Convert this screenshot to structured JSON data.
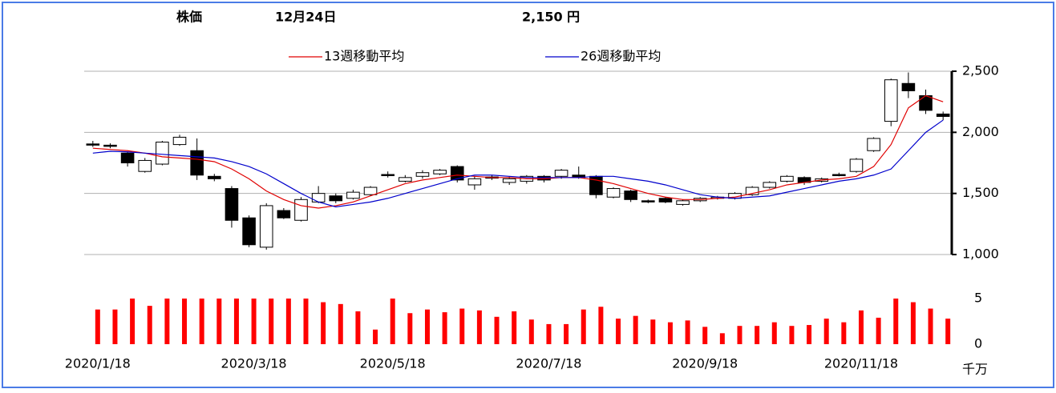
{
  "chart_data": [
    {
      "type": "candlestick",
      "title": "株価",
      "date": "12月24日",
      "price_label": "2,150 円",
      "open": [
        1905,
        1895,
        1830,
        1680,
        1740,
        1900,
        1850,
        1640,
        1540,
        1300,
        1060,
        1360,
        1280,
        1430,
        1480,
        1460,
        1490,
        1655,
        1600,
        1640,
        1660,
        1720,
        1570,
        1635,
        1590,
        1600,
        1640,
        1640,
        1650,
        1640,
        1470,
        1520,
        1440,
        1460,
        1410,
        1440,
        1460,
        1460,
        1490,
        1550,
        1600,
        1630,
        1600,
        1655,
        1680,
        1850,
        2090,
        2400,
        2300,
        2150
      ],
      "high": [
        1930,
        1910,
        1840,
        1790,
        1930,
        1980,
        1950,
        1660,
        1560,
        1320,
        1420,
        1380,
        1470,
        1560,
        1500,
        1530,
        1560,
        1680,
        1650,
        1690,
        1700,
        1730,
        1640,
        1650,
        1640,
        1650,
        1650,
        1700,
        1720,
        1650,
        1550,
        1530,
        1450,
        1470,
        1450,
        1470,
        1480,
        1510,
        1560,
        1600,
        1650,
        1640,
        1630,
        1670,
        1790,
        1960,
        2440,
        2490,
        2350,
        2170
      ],
      "low": [
        1880,
        1870,
        1720,
        1670,
        1730,
        1890,
        1610,
        1600,
        1220,
        1060,
        1040,
        1290,
        1270,
        1420,
        1420,
        1450,
        1480,
        1630,
        1590,
        1620,
        1650,
        1590,
        1530,
        1610,
        1570,
        1580,
        1590,
        1620,
        1620,
        1460,
        1460,
        1430,
        1420,
        1420,
        1400,
        1430,
        1450,
        1450,
        1480,
        1540,
        1590,
        1570,
        1590,
        1640,
        1670,
        1840,
        2050,
        2280,
        2150,
        2100
      ],
      "close": [
        1900,
        1890,
        1750,
        1770,
        1920,
        1960,
        1650,
        1620,
        1280,
        1080,
        1400,
        1300,
        1450,
        1500,
        1440,
        1510,
        1550,
        1650,
        1630,
        1670,
        1690,
        1610,
        1620,
        1630,
        1620,
        1640,
        1610,
        1690,
        1630,
        1490,
        1540,
        1450,
        1430,
        1430,
        1440,
        1460,
        1470,
        1500,
        1550,
        1590,
        1640,
        1590,
        1620,
        1650,
        1780,
        1950,
        2430,
        2340,
        2180,
        2130
      ],
      "up_color": "#ffffff",
      "down_color": "#000000",
      "series": [
        {
          "name": "13週移動平均",
          "color": "#e00000",
          "values": [
            1870,
            1860,
            1850,
            1830,
            1800,
            1790,
            1780,
            1760,
            1700,
            1620,
            1520,
            1450,
            1400,
            1380,
            1400,
            1430,
            1480,
            1530,
            1580,
            1610,
            1630,
            1650,
            1640,
            1630,
            1630,
            1620,
            1620,
            1630,
            1630,
            1610,
            1580,
            1540,
            1500,
            1470,
            1450,
            1450,
            1460,
            1470,
            1500,
            1530,
            1570,
            1590,
            1610,
            1620,
            1640,
            1720,
            1900,
            2200,
            2300,
            2250
          ]
        },
        {
          "name": "26週移動平均",
          "color": "#0000cc",
          "values": [
            1830,
            1845,
            1840,
            1830,
            1820,
            1810,
            1800,
            1790,
            1760,
            1720,
            1660,
            1580,
            1500,
            1430,
            1390,
            1410,
            1430,
            1460,
            1500,
            1540,
            1580,
            1620,
            1650,
            1650,
            1640,
            1630,
            1630,
            1630,
            1630,
            1640,
            1640,
            1620,
            1600,
            1570,
            1530,
            1490,
            1470,
            1460,
            1470,
            1480,
            1510,
            1540,
            1570,
            1600,
            1620,
            1650,
            1700,
            1850,
            2000,
            2100
          ]
        }
      ],
      "ylim": [
        1000,
        2500
      ],
      "yticks": [
        {
          "value": 1000,
          "label": "1,000"
        },
        {
          "value": 1500,
          "label": "1,500"
        },
        {
          "value": 2000,
          "label": "2,000"
        },
        {
          "value": 2500,
          "label": "2,500"
        }
      ],
      "grid": true
    },
    {
      "type": "bar",
      "unit": "千万",
      "color": "#ff0000",
      "categories": [
        "2020/1/18",
        null,
        null,
        null,
        null,
        null,
        null,
        null,
        null,
        "2020/3/18",
        null,
        null,
        null,
        null,
        null,
        null,
        null,
        "2020/5/18",
        null,
        null,
        null,
        null,
        null,
        null,
        null,
        null,
        "2020/7/18",
        null,
        null,
        null,
        null,
        null,
        null,
        null,
        null,
        "2020/9/18",
        null,
        null,
        null,
        null,
        null,
        null,
        null,
        null,
        "2020/11/18",
        null,
        null,
        null,
        null,
        null
      ],
      "values": [
        3.8,
        3.8,
        5,
        4.2,
        5,
        5,
        5,
        5,
        5,
        5,
        5,
        5,
        5,
        4.6,
        4.4,
        3.6,
        1.6,
        5,
        3.4,
        3.8,
        3.5,
        3.9,
        3.7,
        3.0,
        3.6,
        2.7,
        2.2,
        2.2,
        3.8,
        4.1,
        2.8,
        3.1,
        2.7,
        2.4,
        2.6,
        1.9,
        1.2,
        2.0,
        2.0,
        2.4,
        2.0,
        2.1,
        2.8,
        2.4,
        3.7,
        2.9,
        5,
        4.6,
        3.9,
        2.8
      ],
      "ylim": [
        0,
        5
      ],
      "yticks": [
        0,
        5
      ]
    }
  ]
}
